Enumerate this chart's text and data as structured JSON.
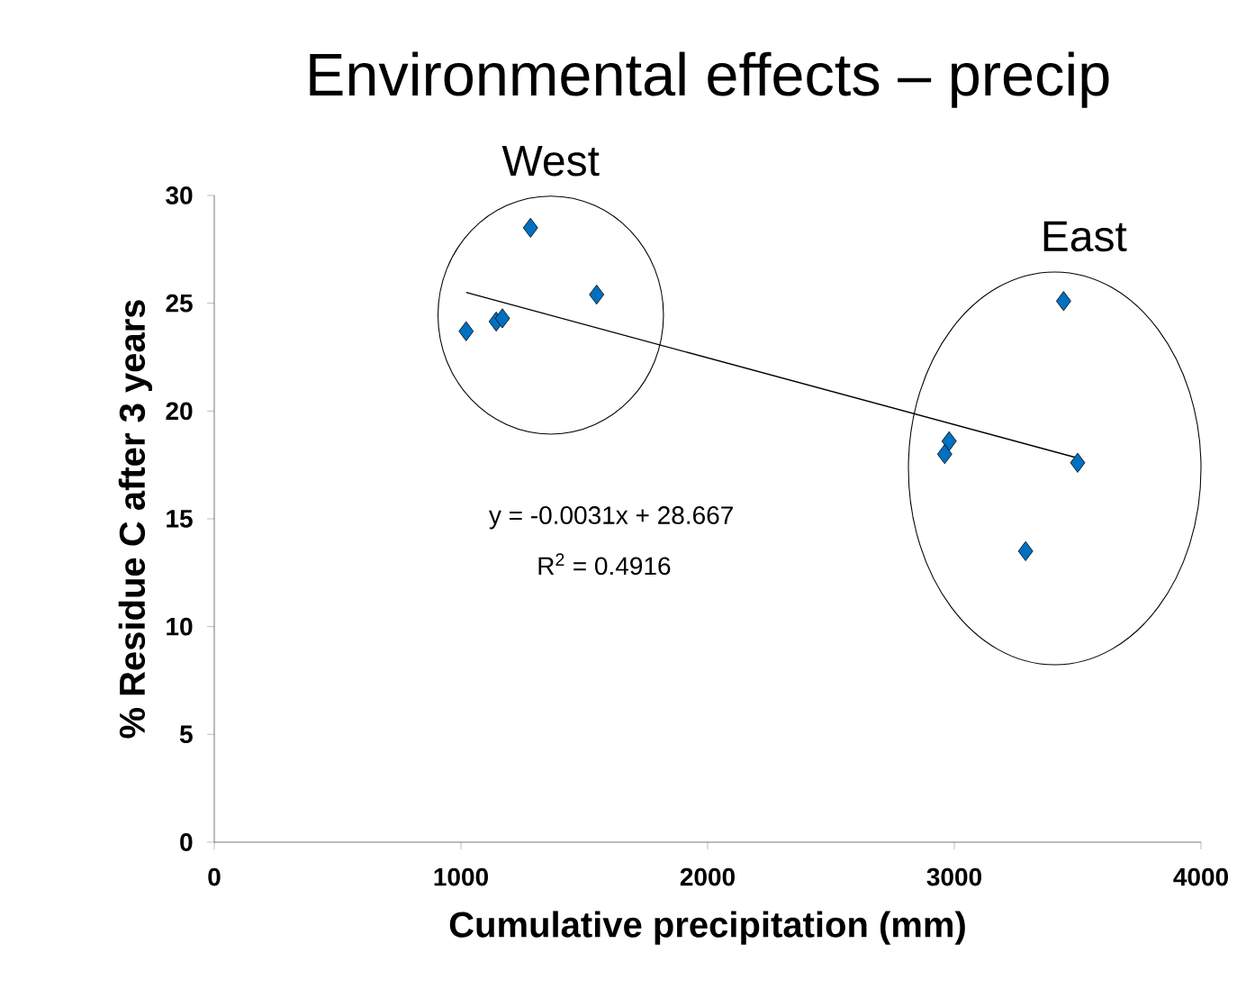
{
  "chart_data": {
    "type": "scatter",
    "title": "Environmental effects – precip",
    "xlabel": "Cumulative precipitation  (mm)",
    "ylabel": "% Residue C after 3 years",
    "xlim": [
      0,
      4000
    ],
    "ylim": [
      0,
      30
    ],
    "xticks": [
      0,
      1000,
      2000,
      3000,
      4000
    ],
    "yticks": [
      0,
      5,
      10,
      15,
      20,
      25,
      30
    ],
    "grid": false,
    "annotations": [
      "West",
      "East",
      "y = -0.0031x + 28.667",
      "R$^{2}$ = 0.4916"
    ],
    "series": [
      {
        "color": "#0070c0",
        "marker": "diamond",
        "x": [
          1021,
          1143,
          1168,
          1282,
          1550,
          3443,
          2979,
          2961,
          3500,
          3289
        ],
        "values": [
          23.7,
          24.15,
          24.3,
          28.5,
          25.4,
          25.1,
          18.6,
          18.0,
          17.6,
          13.5
        ]
      },
      {
        "type": "line",
        "color": "#000000",
        "x": [
          1021,
          3500
        ],
        "values": [
          25.5,
          17.82
        ]
      }
    ]
  }
}
